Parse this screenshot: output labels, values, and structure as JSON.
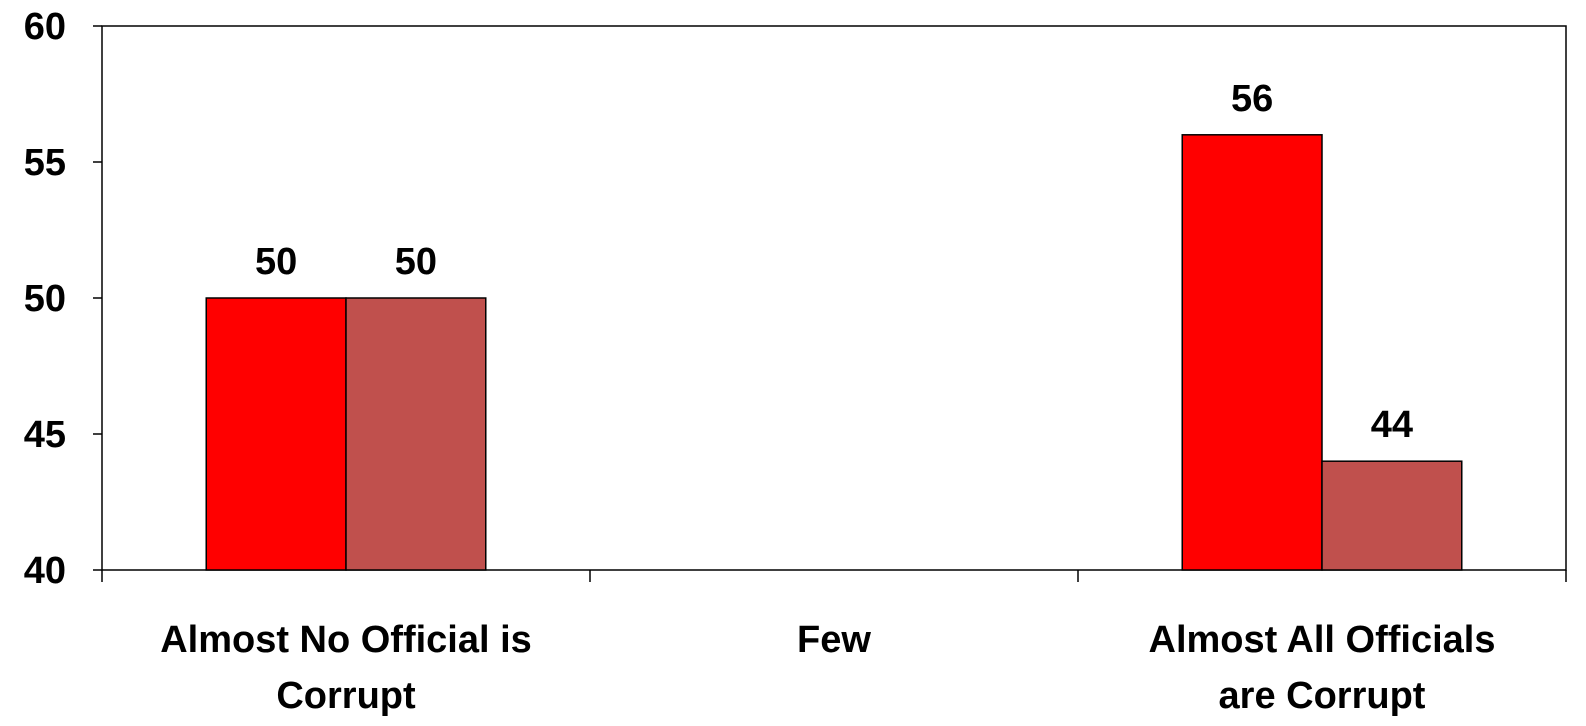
{
  "chart_data": {
    "type": "bar",
    "categories": [
      [
        "Almost No Official is",
        "Corrupt"
      ],
      [
        "Few"
      ],
      [
        "Almost All Officials",
        "are Corrupt"
      ]
    ],
    "series": [
      {
        "values": [
          50,
          null,
          56
        ],
        "color": "#ff0000"
      },
      {
        "values": [
          50,
          null,
          44
        ],
        "color": "#c0504d"
      }
    ],
    "data_labels": true,
    "ylim": [
      40,
      60
    ],
    "yticks": [
      40,
      45,
      50,
      55,
      60
    ],
    "grid": false,
    "legend": "none"
  }
}
